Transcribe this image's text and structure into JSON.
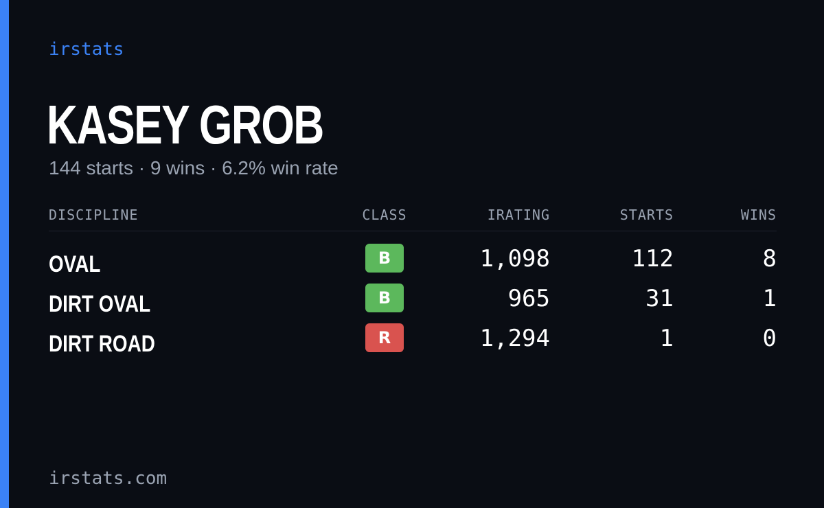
{
  "brand": "irstats",
  "driver": {
    "name": "KASEY GROB",
    "summary": "144 starts · 9 wins · 6.2% win rate"
  },
  "table": {
    "headers": {
      "discipline": "DISCIPLINE",
      "class": "CLASS",
      "irating": "IRATING",
      "starts": "STARTS",
      "wins": "WINS"
    },
    "rows": [
      {
        "discipline": "OVAL",
        "class": "B",
        "class_color": "#5cb85c",
        "irating": "1,098",
        "starts": "112",
        "wins": "8"
      },
      {
        "discipline": "DIRT OVAL",
        "class": "B",
        "class_color": "#5cb85c",
        "irating": "965",
        "starts": "31",
        "wins": "1"
      },
      {
        "discipline": "DIRT ROAD",
        "class": "R",
        "class_color": "#d9534f",
        "irating": "1,294",
        "starts": "1",
        "wins": "0"
      }
    ]
  },
  "footer": "irstats.com",
  "colors": {
    "background": "#0a0d14",
    "accent": "#3b82f6",
    "muted_text": "#9aa3b2",
    "class_b": "#5cb85c",
    "class_r": "#d9534f"
  }
}
